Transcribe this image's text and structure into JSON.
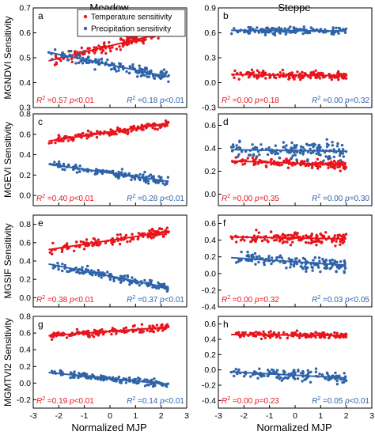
{
  "figure": {
    "column_titles": [
      "Meadow",
      "Steppe"
    ],
    "ylabels": [
      "MGNDVI Sensitivity",
      "MGEVI Sensitivity",
      "MGSIF Sensitivity",
      "MGMTVI2 Sensitivity"
    ],
    "xlabel": "Normalized MJP",
    "legend": {
      "temperature": "Temperature sensitivity",
      "precipitation": "Precipitation sensitivity"
    },
    "colors": {
      "temperature": "#e8141c",
      "precipitation": "#2f63a8"
    }
  },
  "chart_data": [
    {
      "type": "scatter",
      "panel": "a",
      "column": "Meadow",
      "ylabel": "MGNDVI Sensitivity",
      "xlim": [
        -3,
        3
      ],
      "ylim": [
        0.3,
        0.7
      ],
      "yticks": [
        0.3,
        0.4,
        0.5,
        0.6,
        0.7
      ],
      "series": [
        {
          "name": "Temperature sensitivity",
          "color": "#e8141c",
          "x_range": [
            -2.4,
            2.3
          ],
          "mean": 0.5475,
          "slope": 0.025,
          "spread": 0.02,
          "n": 150,
          "fit_label": "R2=0.57 p<0.01"
        },
        {
          "name": "Precipitation sensitivity",
          "color": "#2f63a8",
          "x_range": [
            -2.4,
            2.3
          ],
          "mean": 0.4715,
          "slope": -0.021,
          "spread": 0.025,
          "n": 150,
          "fit_label": "R2=0.18 p<0.01"
        }
      ]
    },
    {
      "type": "scatter",
      "panel": "b",
      "column": "Steppe",
      "xlim": [
        -3,
        3
      ],
      "ylim": [
        -0.3,
        0.9
      ],
      "yticks": [
        -0.3,
        0.0,
        0.3,
        0.6,
        0.9
      ],
      "series": [
        {
          "name": "Temperature sensitivity",
          "color": "#e8141c",
          "x_range": [
            -2.5,
            2.0
          ],
          "mean": 0.09,
          "slope": -0.003,
          "spread": 0.045,
          "n": 150,
          "fit_label": "R2=0.00 p=0.18"
        },
        {
          "name": "Precipitation sensitivity",
          "color": "#2f63a8",
          "x_range": [
            -2.5,
            2.0
          ],
          "mean": 0.625,
          "slope": -0.002,
          "spread": 0.045,
          "n": 150,
          "fit_label": "R2=0.00 p=0.32"
        }
      ]
    },
    {
      "type": "scatter",
      "panel": "c",
      "column": "Meadow",
      "ylabel": "MGEVI Sensitivity",
      "xlim": [
        -3,
        3
      ],
      "ylim": [
        -0.1,
        0.8
      ],
      "yticks": [
        0.0,
        0.2,
        0.4,
        0.6,
        0.8
      ],
      "series": [
        {
          "name": "Temperature sensitivity",
          "color": "#e8141c",
          "x_range": [
            -2.4,
            2.3
          ],
          "mean": 0.6225,
          "slope": 0.037,
          "spread": 0.035,
          "n": 150,
          "fit_label": "R2=0.40 p<0.01"
        },
        {
          "name": "Precipitation sensitivity",
          "color": "#2f63a8",
          "x_range": [
            -2.4,
            2.3
          ],
          "mean": 0.22,
          "slope": -0.036,
          "spread": 0.04,
          "n": 150,
          "fit_label": "R2=0.28 p<0.01"
        }
      ]
    },
    {
      "type": "scatter",
      "panel": "d",
      "column": "Steppe",
      "xlim": [
        -3,
        3
      ],
      "ylim": [
        -0.1,
        0.7
      ],
      "yticks": [
        0.0,
        0.2,
        0.4,
        0.6
      ],
      "series": [
        {
          "name": "Temperature sensitivity",
          "color": "#e8141c",
          "x_range": [
            -2.5,
            2.0
          ],
          "mean": 0.27,
          "slope": -0.008,
          "spread": 0.035,
          "n": 150,
          "fit_label": "R2=0.00 p=0.35"
        },
        {
          "name": "Precipitation sensitivity",
          "color": "#2f63a8",
          "x_range": [
            -2.5,
            2.0
          ],
          "mean": 0.38,
          "slope": -0.003,
          "spread": 0.07,
          "n": 150,
          "fit_label": "R2=0.00 p=0.30"
        }
      ]
    },
    {
      "type": "scatter",
      "panel": "e",
      "column": "Meadow",
      "ylabel": "MGSIF Sensitivity",
      "xlim": [
        -3,
        3
      ],
      "ylim": [
        -0.1,
        0.9
      ],
      "yticks": [
        0.0,
        0.2,
        0.4,
        0.6,
        0.8
      ],
      "series": [
        {
          "name": "Temperature sensitivity",
          "color": "#e8141c",
          "x_range": [
            -2.4,
            2.3
          ],
          "mean": 0.625,
          "slope": 0.042,
          "spread": 0.05,
          "n": 150,
          "fit_label": "R2=0.38 p<0.01"
        },
        {
          "name": "Precipitation sensitivity",
          "color": "#2f63a8",
          "x_range": [
            -2.4,
            2.3
          ],
          "mean": 0.235,
          "slope": -0.055,
          "spread": 0.045,
          "n": 150,
          "fit_label": "R2=0.37 p<0.01"
        }
      ]
    },
    {
      "type": "scatter",
      "panel": "f",
      "column": "Steppe",
      "xlim": [
        -3,
        3
      ],
      "ylim": [
        -0.4,
        0.7
      ],
      "yticks": [
        -0.4,
        -0.2,
        0.0,
        0.2,
        0.4,
        0.6
      ],
      "series": [
        {
          "name": "Temperature sensitivity",
          "color": "#e8141c",
          "x_range": [
            -2.5,
            2.0
          ],
          "mean": 0.425,
          "slope": -0.005,
          "spread": 0.07,
          "n": 150,
          "fit_label": "R2=0.00 p=0.32"
        },
        {
          "name": "Precipitation sensitivity",
          "color": "#2f63a8",
          "x_range": [
            -2.5,
            2.0
          ],
          "mean": 0.14,
          "slope": -0.02,
          "spread": 0.09,
          "n": 150,
          "fit_label": "R2=0.03 p<0.05"
        }
      ]
    },
    {
      "type": "scatter",
      "panel": "g",
      "column": "Meadow",
      "ylabel": "MGMTVI2 Sensitivity",
      "xlim": [
        -3,
        3
      ],
      "ylim": [
        -0.3,
        0.8
      ],
      "yticks": [
        -0.2,
        0.0,
        0.2,
        0.4,
        0.6,
        0.8
      ],
      "series": [
        {
          "name": "Temperature sensitivity",
          "color": "#e8141c",
          "x_range": [
            -2.4,
            2.3
          ],
          "mean": 0.62,
          "slope": 0.022,
          "spread": 0.04,
          "n": 150,
          "fit_label": "R2=0.19 p<0.01"
        },
        {
          "name": "Precipitation sensitivity",
          "color": "#2f63a8",
          "x_range": [
            -2.4,
            2.3
          ],
          "mean": 0.055,
          "slope": -0.03,
          "spread": 0.04,
          "n": 150,
          "fit_label": "R2=0.14 p<0.01"
        }
      ]
    },
    {
      "type": "scatter",
      "panel": "h",
      "column": "Steppe",
      "xlim": [
        -3,
        3
      ],
      "ylim": [
        -0.5,
        0.7
      ],
      "yticks": [
        -0.4,
        -0.2,
        0.0,
        0.2,
        0.4,
        0.6
      ],
      "series": [
        {
          "name": "Temperature sensitivity",
          "color": "#e8141c",
          "x_range": [
            -2.5,
            2.0
          ],
          "mean": 0.455,
          "slope": -0.003,
          "spread": 0.04,
          "n": 150,
          "fit_label": "R2=0.00 p=0.23"
        },
        {
          "name": "Precipitation sensitivity",
          "color": "#2f63a8",
          "x_range": [
            -2.5,
            2.0
          ],
          "mean": -0.07,
          "slope": -0.018,
          "spread": 0.07,
          "n": 150,
          "fit_label": "R2=0.05 p<0.01"
        }
      ]
    }
  ],
  "xticks": [
    -3,
    -2,
    -1,
    0,
    1,
    2,
    3
  ]
}
